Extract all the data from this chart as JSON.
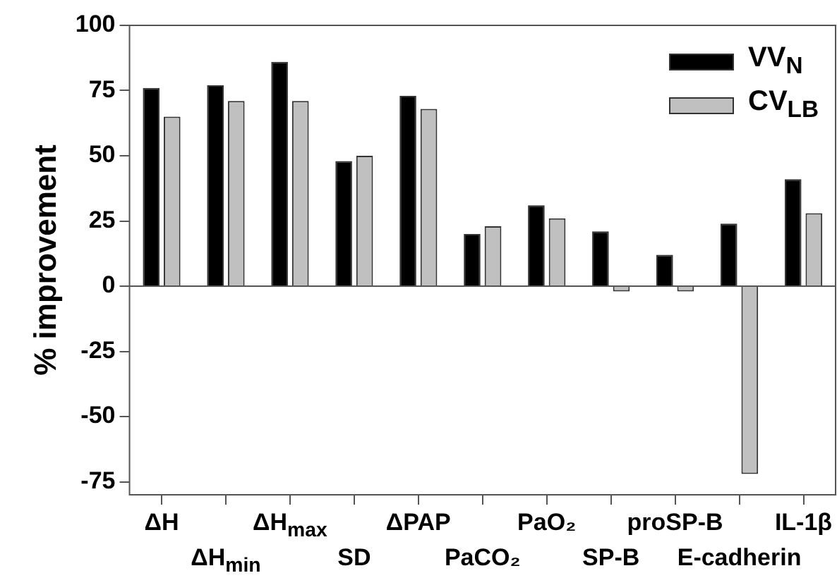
{
  "chart_data": {
    "type": "bar",
    "ylabel": "% improvement",
    "categories": [
      "ΔH",
      "ΔH$_{min}$",
      "ΔH$_{max}$",
      "SD",
      "ΔPAP",
      "PaCO₂",
      "PaO₂",
      "SP-B",
      "proSP-B",
      "E-cadherin",
      "IL-1β"
    ],
    "series": [
      {
        "name": "VV$_{N}$",
        "color": "#000000",
        "values": [
          76,
          77,
          86,
          48,
          73,
          20,
          31,
          21,
          12,
          24,
          41
        ]
      },
      {
        "name": "CV$_{LB}$",
        "color": "#c0c0c0",
        "values": [
          65,
          71,
          71,
          50,
          68,
          23,
          26,
          -2,
          -2,
          -72,
          28
        ]
      }
    ],
    "ylim": [
      -80,
      100
    ],
    "yticks": [
      -75,
      -50,
      -25,
      0,
      25,
      50,
      75,
      100
    ],
    "grid": false,
    "ref_lines": [
      {
        "axis": "y",
        "value": 0
      }
    ],
    "legend": "top right"
  }
}
